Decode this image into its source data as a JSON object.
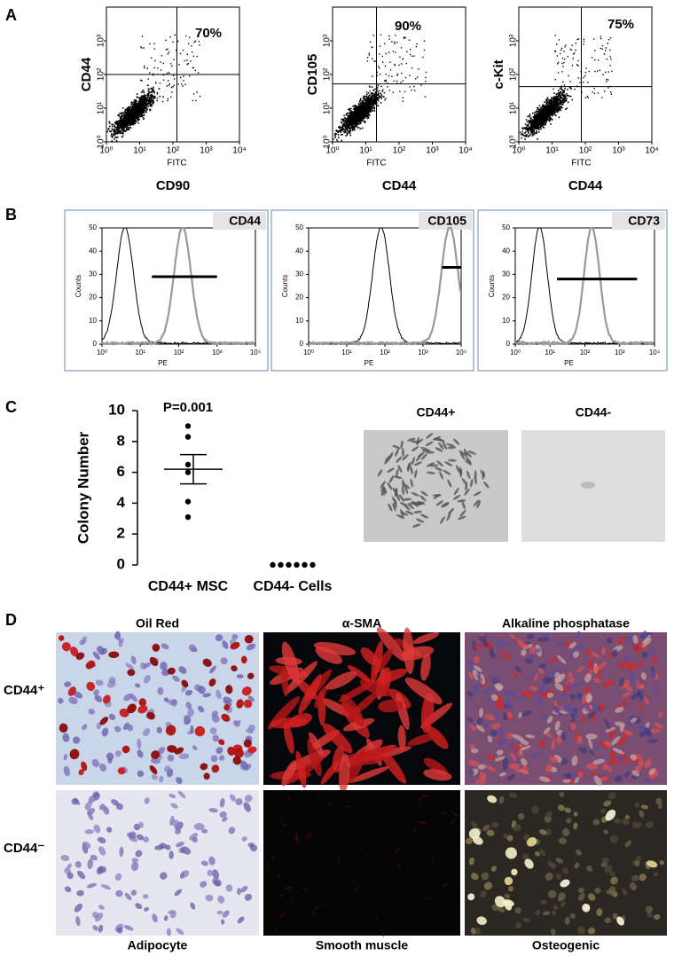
{
  "panel_a": {
    "label": "A",
    "xlim": [
      1,
      10000
    ],
    "ylim": [
      1,
      10000
    ],
    "xticks": [
      {
        "value": 1,
        "label": "10⁰"
      },
      {
        "value": 10,
        "label": "10¹"
      },
      {
        "value": 100,
        "label": "10²"
      },
      {
        "value": 1000,
        "label": "10³"
      },
      {
        "value": 10000,
        "label": "10⁴"
      }
    ],
    "yticks": [
      {
        "value": 1,
        "label": "10⁰"
      },
      {
        "value": 10,
        "label": "10¹"
      },
      {
        "value": 100,
        "label": "10²"
      },
      {
        "value": 1000,
        "label": "10³"
      }
    ],
    "plots": [
      {
        "y_title": "CD44",
        "x_channel": "FITC",
        "x_title": "CD90",
        "percent": "70%"
      },
      {
        "y_title": "CD105",
        "x_channel": "FITC",
        "x_title": "CD44",
        "percent": "90%"
      },
      {
        "y_title": "c-Kit",
        "x_channel": "FITC",
        "x_title": "CD44",
        "percent": "75%"
      }
    ]
  },
  "panel_b": {
    "label": "B",
    "y_title": "Counts",
    "x_channel": "PE",
    "ylim": [
      0,
      50
    ],
    "yticks": [
      0,
      10,
      20,
      30,
      40,
      50
    ],
    "xlim": [
      1,
      10000
    ],
    "xticks": [
      {
        "value": 1,
        "label": "10⁰"
      },
      {
        "value": 10,
        "label": "10¹"
      },
      {
        "value": 100,
        "label": "10²"
      },
      {
        "value": 1000,
        "label": "10³"
      },
      {
        "value": 10000,
        "label": "10⁴"
      }
    ],
    "plots": [
      {
        "marker": "CD44"
      },
      {
        "marker": "CD105"
      },
      {
        "marker": "CD73"
      }
    ]
  },
  "chart_data": {
    "type": "dot",
    "label": "C",
    "annotation": "P=0.001",
    "y_title": "Colony Number",
    "categories": [
      "CD44+ MSC",
      "CD44- Cells"
    ],
    "groups": [
      {
        "values": [
          9,
          8.3,
          6.5,
          6,
          4.1,
          3.1
        ],
        "mean": 6.2,
        "sem": 0.95
      },
      {
        "values": [
          0,
          0,
          0,
          0,
          0,
          0
        ]
      }
    ],
    "ylim": [
      0,
      10
    ],
    "yticks": [
      0,
      2,
      4,
      6,
      8,
      10
    ],
    "color": "#000000"
  },
  "panel_c_images": [
    {
      "title": "CD44+"
    },
    {
      "title": "CD44-"
    }
  ],
  "panel_d": {
    "label": "D",
    "columns": [
      "Oil Red",
      "α-SMA",
      "Alkaline  phosphatase"
    ],
    "rows": [
      "CD44⁺",
      "CD44⁻"
    ],
    "cell_types": [
      "Adipocyte",
      "Smooth muscle",
      "Osteogenic"
    ]
  }
}
